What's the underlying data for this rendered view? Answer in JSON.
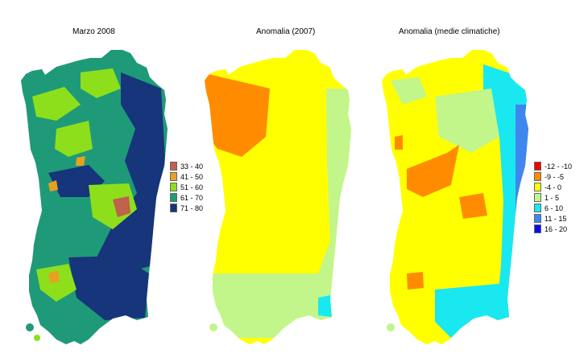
{
  "panels": [
    {
      "title": "Marzo 2008"
    },
    {
      "title": "Anomalia (2007)"
    },
    {
      "title": "Anomalia (medie climatiche)"
    }
  ],
  "legend_main": [
    {
      "label": "33 - 40",
      "color": "#c0614b"
    },
    {
      "label": "41 - 50",
      "color": "#e8a020"
    },
    {
      "label": "51 - 60",
      "color": "#8ddf1c"
    },
    {
      "label": "61 - 70",
      "color": "#1f9a78"
    },
    {
      "label": "71 - 80",
      "color": "#16357a"
    }
  ],
  "legend_anomaly": [
    {
      "label": "-12 - -10",
      "color": "#ee0000"
    },
    {
      "label": "-9 - -5",
      "color": "#ff8c00"
    },
    {
      "label": "-4 - 0",
      "color": "#ffff00"
    },
    {
      "label": "1 - 5",
      "color": "#c2f58a"
    },
    {
      "label": "6 - 10",
      "color": "#19e8f0"
    },
    {
      "label": "11 - 15",
      "color": "#3f86ef"
    },
    {
      "label": "16 - 20",
      "color": "#0a0aef"
    }
  ]
}
